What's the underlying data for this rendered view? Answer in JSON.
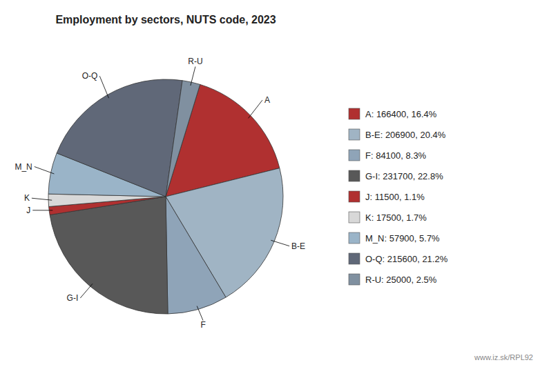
{
  "chart_data": {
    "type": "pie",
    "title": "Employment by sectors, NUTS code, 2023",
    "categories": [
      "A",
      "B-E",
      "F",
      "G-I",
      "J",
      "K",
      "M_N",
      "O-Q",
      "R-U"
    ],
    "values": [
      166400,
      206900,
      84100,
      231700,
      11500,
      17500,
      57900,
      215600,
      25000
    ],
    "colors": [
      "#b03030",
      "#a0b4c4",
      "#8fa4b8",
      "#585858",
      "#b03030",
      "#d8d8d8",
      "#9ab4c8",
      "#606878",
      "#8090a0"
    ],
    "legend_labels": [
      "A: 166400, 16.4%",
      "B-E: 206900, 20.4%",
      "F: 84100, 8.3%",
      "G-I: 231700, 22.8%",
      "J: 11500, 1.1%",
      "K: 17500, 1.7%",
      "M_N: 57900, 5.7%",
      "O-Q: 215600, 21.2%",
      "R-U: 25000, 2.5%"
    ],
    "legend": "right",
    "annotations": [
      "www.iz.sk/RPL92"
    ]
  }
}
